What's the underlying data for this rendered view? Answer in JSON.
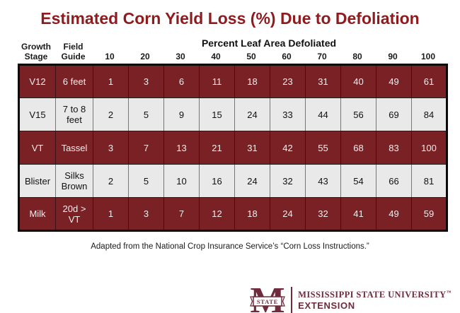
{
  "title": "Estimated Corn Yield Loss (%) Due to Defoliation",
  "chart_data": {
    "type": "table",
    "title": "Estimated Corn Yield Loss (%) Due to Defoliation",
    "column_group_header": "Percent Leaf Area Defoliated",
    "stage_header": "Growth Stage",
    "guide_header": "Field Guide",
    "defoliation_levels": [
      "10",
      "20",
      "30",
      "40",
      "50",
      "60",
      "70",
      "80",
      "90",
      "100"
    ],
    "rows": [
      {
        "stage": "V12",
        "guide": "6 feet",
        "variant": "dark",
        "values": [
          1,
          3,
          6,
          11,
          18,
          23,
          31,
          40,
          49,
          61
        ]
      },
      {
        "stage": "V15",
        "guide": "7 to 8 feet",
        "variant": "light",
        "values": [
          2,
          5,
          9,
          15,
          24,
          33,
          44,
          56,
          69,
          84
        ]
      },
      {
        "stage": "VT",
        "guide": "Tassel",
        "variant": "dark",
        "values": [
          3,
          7,
          13,
          21,
          31,
          42,
          55,
          68,
          83,
          100
        ]
      },
      {
        "stage": "Blister",
        "guide": "Silks Brown",
        "variant": "light",
        "values": [
          2,
          5,
          10,
          16,
          24,
          32,
          43,
          54,
          66,
          81
        ]
      },
      {
        "stage": "Milk",
        "guide": "20d > VT",
        "variant": "dark",
        "values": [
          1,
          3,
          7,
          12,
          18,
          24,
          32,
          41,
          49,
          59
        ]
      }
    ]
  },
  "footer": {
    "attribution": "Adapted from the National Crop Insurance Service’s “Corn Loss Instructions.”"
  },
  "logo": {
    "banner_text": "STATE",
    "line1": "MISSISSIPPI STATE UNIVERSITY",
    "trademark": "™",
    "line2": "EXTENSION"
  },
  "colors": {
    "title_red": "#8E1B1D",
    "maroon_row": "#7A2126",
    "light_row": "#E9E9E9",
    "logo_maroon": "#6F2B3C",
    "table_border": "#0a0a0a"
  }
}
